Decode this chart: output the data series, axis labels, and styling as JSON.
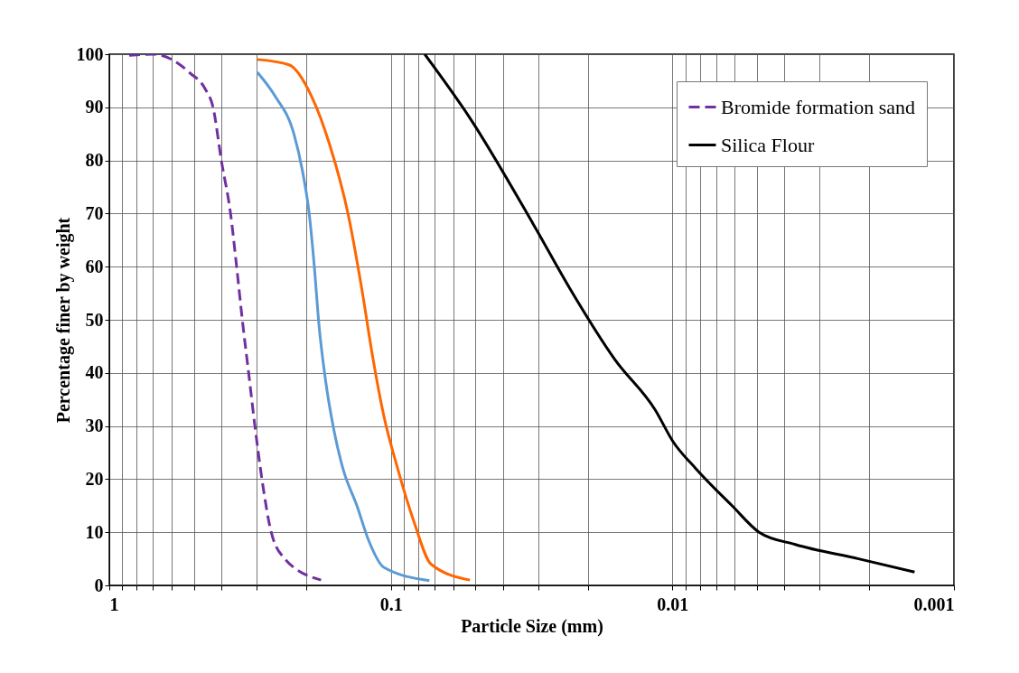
{
  "chart_data": {
    "type": "line",
    "xlabel": "Particle Size (mm)",
    "ylabel": "Percentage finer by weight",
    "log": "x",
    "grid": true,
    "legend": "top right",
    "xlim": [
      1,
      0.001
    ],
    "ylim": [
      0,
      100
    ],
    "xticks": [
      1,
      {
        "value": 0.9,
        "label": null
      },
      {
        "value": 0.8,
        "label": null
      },
      {
        "value": 0.7,
        "label": null
      },
      {
        "value": 0.6,
        "label": null
      },
      {
        "value": 0.5,
        "label": null
      },
      {
        "value": 0.4,
        "label": null
      },
      {
        "value": 0.3,
        "label": null
      },
      {
        "value": 0.2,
        "label": null
      },
      0.1,
      {
        "value": 0.09,
        "label": null
      },
      {
        "value": 0.08,
        "label": null
      },
      {
        "value": 0.07,
        "label": null
      },
      {
        "value": 0.06,
        "label": null
      },
      {
        "value": 0.05,
        "label": null
      },
      {
        "value": 0.04,
        "label": null
      },
      {
        "value": 0.03,
        "label": null
      },
      {
        "value": 0.02,
        "label": null
      },
      0.01,
      {
        "value": 0.009,
        "label": null
      },
      {
        "value": 0.008,
        "label": null
      },
      {
        "value": 0.007,
        "label": null
      },
      {
        "value": 0.006,
        "label": null
      },
      {
        "value": 0.005,
        "label": null
      },
      {
        "value": 0.004,
        "label": null
      },
      {
        "value": 0.003,
        "label": null
      },
      {
        "value": 0.002,
        "label": null
      },
      0.001
    ],
    "yticks": [
      0,
      10,
      20,
      30,
      40,
      50,
      60,
      70,
      80,
      90,
      100
    ],
    "series": [
      {
        "name": "Bromide formation sand",
        "color": "#7030a0",
        "line_style": "dashed",
        "x": [
          0.85,
          0.696,
          0.6,
          0.518,
          0.457,
          0.428,
          0.4,
          0.371,
          0.353,
          0.337,
          0.32,
          0.304,
          0.287,
          0.266,
          0.238,
          0.177
        ],
        "values": [
          99.8,
          100,
          99,
          96.5,
          93.5,
          90,
          80,
          70,
          60,
          50,
          40,
          30,
          20,
          10,
          5,
          1
        ]
      },
      {
        "color": "#ff6600",
        "line_style": "solid",
        "x": [
          0.298,
          0.23,
          0.191,
          0.165,
          0.142,
          0.127,
          0.116,
          0.106,
          0.0946,
          0.0828,
          0.072,
          0.0524
        ],
        "values": [
          99,
          98,
          92,
          83,
          70,
          56,
          43,
          32,
          22,
          12,
          4,
          1
        ]
      },
      {
        "color": "#5b9bd5",
        "line_style": "solid",
        "x": [
          0.298,
          0.257,
          0.221,
          0.206,
          0.195,
          0.187,
          0.18,
          0.171,
          0.159,
          0.148,
          0.132,
          0.12,
          0.106,
          0.073
        ],
        "values": [
          96.6,
          92,
          85,
          78,
          70,
          60,
          49,
          39,
          29,
          22,
          15,
          8.5,
          3.4,
          0.9
        ]
      },
      {
        "name": "Silica Flour",
        "color": "#000000",
        "line_style": "solid",
        "x": [
          0.0758,
          0.0524,
          0.0312,
          0.0232,
          0.016,
          0.0115,
          0.00993,
          0.00826,
          0.00614,
          0.00492,
          0.00366,
          0.00218,
          0.00138
        ],
        "values": [
          100,
          88,
          68,
          56,
          42.5,
          33,
          27,
          22,
          15,
          10,
          7.7,
          5,
          2.5
        ]
      }
    ]
  }
}
